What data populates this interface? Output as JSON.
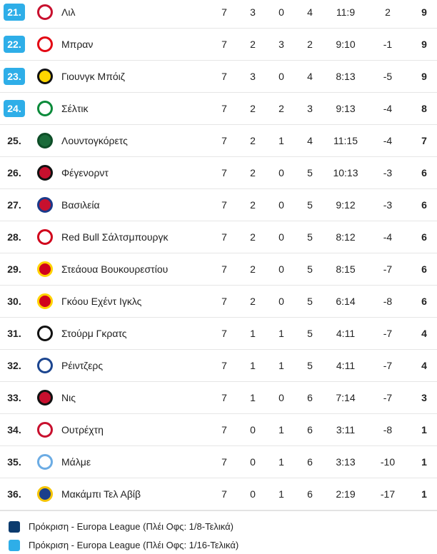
{
  "table": {
    "columns": [
      "rank",
      "team",
      "played",
      "won",
      "drawn",
      "lost",
      "goals",
      "goal_diff",
      "points"
    ],
    "rows": [
      [
        "21.",
        "Λιλ",
        7,
        3,
        0,
        4,
        "11:9",
        2,
        9
      ],
      [
        "22.",
        "Μπραν",
        7,
        2,
        3,
        2,
        "9:10",
        -1,
        9
      ],
      [
        "23.",
        "Γιουνγκ Μπόιζ",
        7,
        3,
        0,
        4,
        "8:13",
        -5,
        9
      ],
      [
        "24.",
        "Σέλτικ",
        7,
        2,
        2,
        3,
        "9:13",
        -4,
        8
      ],
      [
        "25.",
        "Λουντογκόρετς",
        7,
        2,
        1,
        4,
        "11:15",
        -4,
        7
      ],
      [
        "26.",
        "Φέγενορντ",
        7,
        2,
        0,
        5,
        "10:13",
        -3,
        6
      ],
      [
        "27.",
        "Βασιλεία",
        7,
        2,
        0,
        5,
        "9:12",
        -3,
        6
      ],
      [
        "28.",
        "Red Bull Σάλτσμπουργκ",
        7,
        2,
        0,
        5,
        "8:12",
        -4,
        6
      ],
      [
        "29.",
        "Στεάουα Βουκουρεστίου",
        7,
        2,
        0,
        5,
        "8:15",
        -7,
        6
      ],
      [
        "30.",
        "Γκόου Εχέντ Ιγκλς",
        7,
        2,
        0,
        5,
        "6:14",
        -8,
        6
      ],
      [
        "31.",
        "Στούρμ Γκρατς",
        7,
        1,
        1,
        5,
        "4:11",
        -7,
        4
      ],
      [
        "32.",
        "Ρέιντζερς",
        7,
        1,
        1,
        5,
        "4:11",
        -7,
        4
      ],
      [
        "33.",
        "Νις",
        7,
        1,
        0,
        6,
        "7:14",
        -7,
        3
      ],
      [
        "34.",
        "Ουτρέχτη",
        7,
        0,
        1,
        6,
        "3:11",
        -8,
        1
      ],
      [
        "35.",
        "Μάλμε",
        7,
        0,
        1,
        6,
        "3:13",
        -10,
        1
      ],
      [
        "36.",
        "Μακάμπι Τελ Αβίβ",
        7,
        0,
        1,
        6,
        "2:19",
        -17,
        1
      ]
    ]
  },
  "legend": [
    "Πρόκριση - Europa League (Πλέι Οφς: 1/8-Τελικά)",
    "Πρόκριση - Europa League (Πλέι Οφς: 1/16-Τελικά)"
  ]
}
